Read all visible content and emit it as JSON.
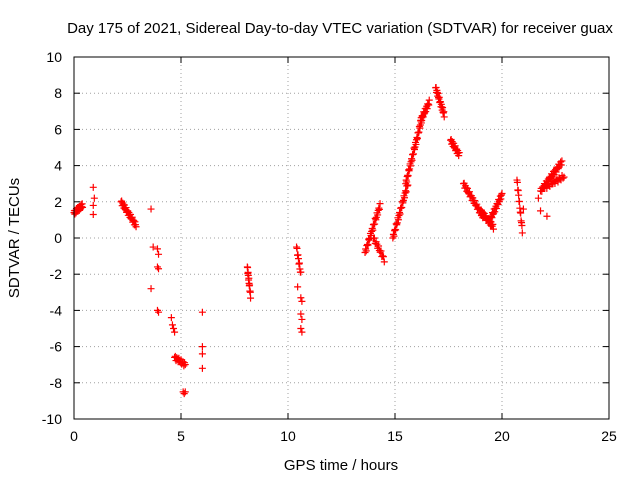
{
  "chart_data": {
    "type": "scatter",
    "title": "Day 175 of 2021, Sidereal Day-to-day VTEC variation (SDTVAR) for receiver guax",
    "xlabel": "GPS time / hours",
    "ylabel": "SDTVAR / TECUs",
    "xlim": [
      0,
      25
    ],
    "ylim": [
      -10,
      10
    ],
    "xticks": [
      0,
      5,
      10,
      15,
      20,
      25
    ],
    "yticks": [
      -10,
      -8,
      -6,
      -4,
      -2,
      0,
      2,
      4,
      6,
      8,
      10
    ],
    "grid": true,
    "marker": "+",
    "marker_color": "#ff0000",
    "segments": [
      {
        "x0": 0.0,
        "x1": 0.4,
        "y0": 1.4,
        "y1": 1.8,
        "n": 22
      },
      {
        "x0": 2.2,
        "x1": 2.9,
        "y0": 2.0,
        "y1": 0.7,
        "n": 28
      },
      {
        "x0": 4.7,
        "x1": 5.2,
        "y0": -6.6,
        "y1": -7.0,
        "n": 16
      },
      {
        "x0": 8.1,
        "x1": 8.25,
        "y0": -1.6,
        "y1": -3.2,
        "n": 14
      },
      {
        "x0": 10.4,
        "x1": 10.6,
        "y0": -0.5,
        "y1": -2.0,
        "n": 10
      },
      {
        "x0": 13.6,
        "x1": 14.3,
        "y0": -0.8,
        "y1": 1.8,
        "n": 26
      },
      {
        "x0": 14.0,
        "x1": 14.5,
        "y0": 0.0,
        "y1": -1.2,
        "n": 14
      },
      {
        "x0": 14.9,
        "x1": 15.6,
        "y0": 0.0,
        "y1": 3.0,
        "n": 28
      },
      {
        "x0": 15.5,
        "x1": 16.3,
        "y0": 3.0,
        "y1": 6.8,
        "n": 36
      },
      {
        "x0": 16.2,
        "x1": 16.6,
        "y0": 6.5,
        "y1": 7.5,
        "n": 18
      },
      {
        "x0": 16.9,
        "x1": 17.3,
        "y0": 8.3,
        "y1": 6.8,
        "n": 22
      },
      {
        "x0": 17.6,
        "x1": 18.0,
        "y0": 5.4,
        "y1": 4.6,
        "n": 18
      },
      {
        "x0": 18.2,
        "x1": 19.1,
        "y0": 3.0,
        "y1": 1.2,
        "n": 30
      },
      {
        "x0": 19.0,
        "x1": 19.6,
        "y0": 1.5,
        "y1": 0.6,
        "n": 22
      },
      {
        "x0": 19.4,
        "x1": 20.0,
        "y0": 0.9,
        "y1": 2.4,
        "n": 24
      },
      {
        "x0": 20.7,
        "x1": 20.95,
        "y0": 3.2,
        "y1": 0.4,
        "n": 14
      },
      {
        "x0": 21.8,
        "x1": 22.8,
        "y0": 2.6,
        "y1": 4.2,
        "n": 34
      },
      {
        "x0": 22.0,
        "x1": 22.9,
        "y0": 2.8,
        "y1": 3.4,
        "n": 20
      }
    ],
    "points": [
      {
        "x": 0.9,
        "y": 2.8
      },
      {
        "x": 0.95,
        "y": 2.2
      },
      {
        "x": 0.9,
        "y": 1.8
      },
      {
        "x": 0.9,
        "y": 1.3
      },
      {
        "x": 3.6,
        "y": 1.6
      },
      {
        "x": 3.6,
        "y": -2.8
      },
      {
        "x": 3.7,
        "y": -0.5
      },
      {
        "x": 3.9,
        "y": -0.6
      },
      {
        "x": 3.95,
        "y": -0.9
      },
      {
        "x": 3.9,
        "y": -1.6
      },
      {
        "x": 3.95,
        "y": -1.7
      },
      {
        "x": 3.9,
        "y": -4.0
      },
      {
        "x": 3.95,
        "y": -4.1
      },
      {
        "x": 4.55,
        "y": -4.4
      },
      {
        "x": 4.6,
        "y": -4.8
      },
      {
        "x": 4.65,
        "y": -5.0
      },
      {
        "x": 4.7,
        "y": -5.2
      },
      {
        "x": 5.1,
        "y": -8.5
      },
      {
        "x": 5.15,
        "y": -8.6
      },
      {
        "x": 5.2,
        "y": -8.5
      },
      {
        "x": 6.0,
        "y": -4.1
      },
      {
        "x": 6.0,
        "y": -6.0
      },
      {
        "x": 6.0,
        "y": -6.4
      },
      {
        "x": 6.0,
        "y": -7.2
      },
      {
        "x": 10.45,
        "y": -2.7
      },
      {
        "x": 10.6,
        "y": -3.3
      },
      {
        "x": 10.65,
        "y": -3.5
      },
      {
        "x": 10.6,
        "y": -4.2
      },
      {
        "x": 10.65,
        "y": -4.5
      },
      {
        "x": 10.6,
        "y": -5.0
      },
      {
        "x": 10.65,
        "y": -5.2
      },
      {
        "x": 21.0,
        "y": 1.6
      },
      {
        "x": 21.8,
        "y": 1.5
      },
      {
        "x": 22.1,
        "y": 1.2
      },
      {
        "x": 21.7,
        "y": 2.2
      }
    ]
  }
}
